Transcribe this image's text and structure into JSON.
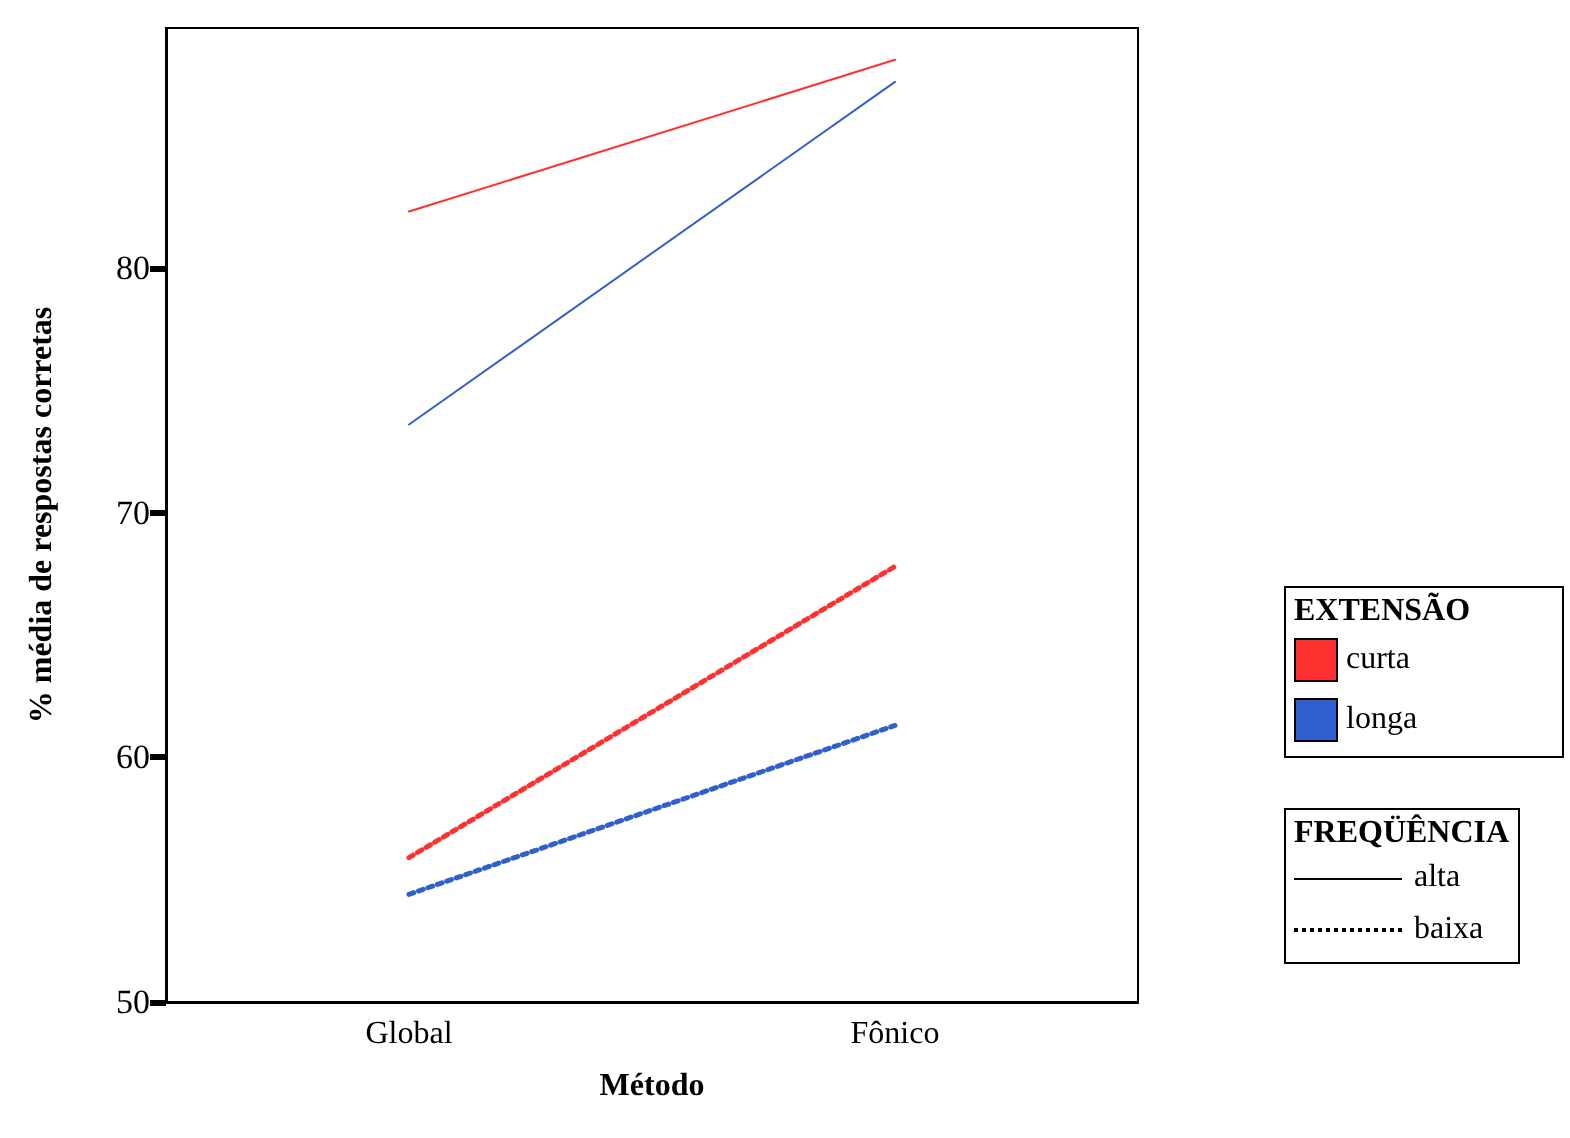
{
  "chart_data": {
    "type": "line",
    "xlabel": "Método",
    "ylabel": "% média de respostas corretas",
    "categories": [
      "Global",
      "Fônico"
    ],
    "series": [
      {
        "color": "#ff3030",
        "line_style": "solid",
        "values": [
          82.3,
          88.5
        ]
      },
      {
        "color": "#3060d0",
        "line_style": "solid",
        "values": [
          73.6,
          87.6
        ]
      },
      {
        "color": "#ff3030",
        "line_style": "dotted",
        "values": [
          55.9,
          67.8
        ]
      },
      {
        "color": "#3060d0",
        "line_style": "dotted",
        "values": [
          54.4,
          61.3
        ]
      }
    ],
    "ylim": [
      50,
      89.8
    ],
    "yticks": [
      50,
      60,
      70,
      80
    ],
    "grid": false,
    "marker": "none",
    "annotations": [
      "EXTENSÃO",
      "curta",
      "longa",
      "FREQÜÊNCIA",
      "alta",
      "baixa"
    ]
  }
}
